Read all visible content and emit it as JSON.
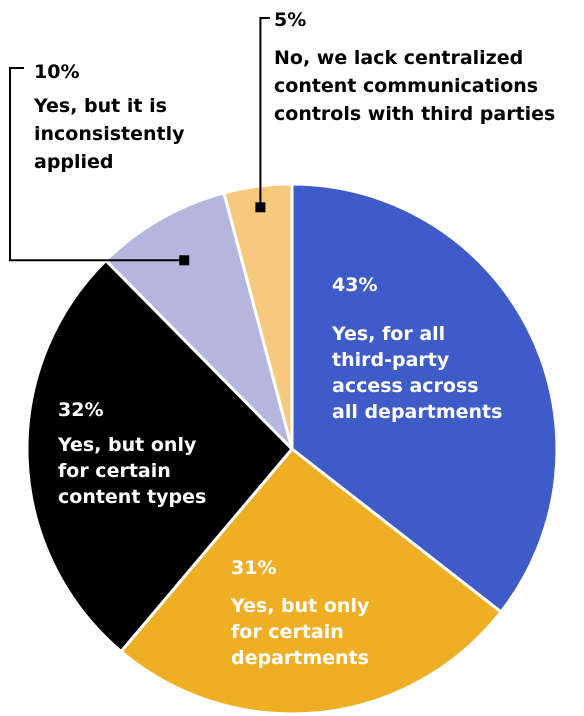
{
  "chart_data": {
    "type": "pie",
    "slices": [
      {
        "key": "all_depts",
        "value": 43,
        "percent_label": "43%",
        "label_lines": [
          "Yes, for all",
          "third-party",
          "access across",
          "all departments"
        ],
        "color": "#3f5bc7",
        "text_color": "#ffffff"
      },
      {
        "key": "certain_depts",
        "value": 31,
        "percent_label": "31%",
        "label_lines": [
          "Yes, but only",
          "for certain",
          "departments"
        ],
        "color": "#efaf24",
        "text_color": "#ffffff"
      },
      {
        "key": "content_types",
        "value": 32,
        "percent_label": "32%",
        "label_lines": [
          "Yes, but only",
          "for certain",
          "content types"
        ],
        "color": "#000000",
        "text_color": "#ffffff"
      },
      {
        "key": "inconsistent",
        "value": 10,
        "percent_label": "10%",
        "label_lines": [
          "Yes, but it is",
          "inconsistently",
          "applied"
        ],
        "color": "#b5b6dd",
        "text_color": "#000000"
      },
      {
        "key": "lack_controls",
        "value": 5,
        "percent_label": "5%",
        "label_lines": [
          "No, we lack centralized",
          "content communications",
          "controls with third parties"
        ],
        "color": "#f6c97c",
        "text_color": "#000000"
      }
    ]
  }
}
